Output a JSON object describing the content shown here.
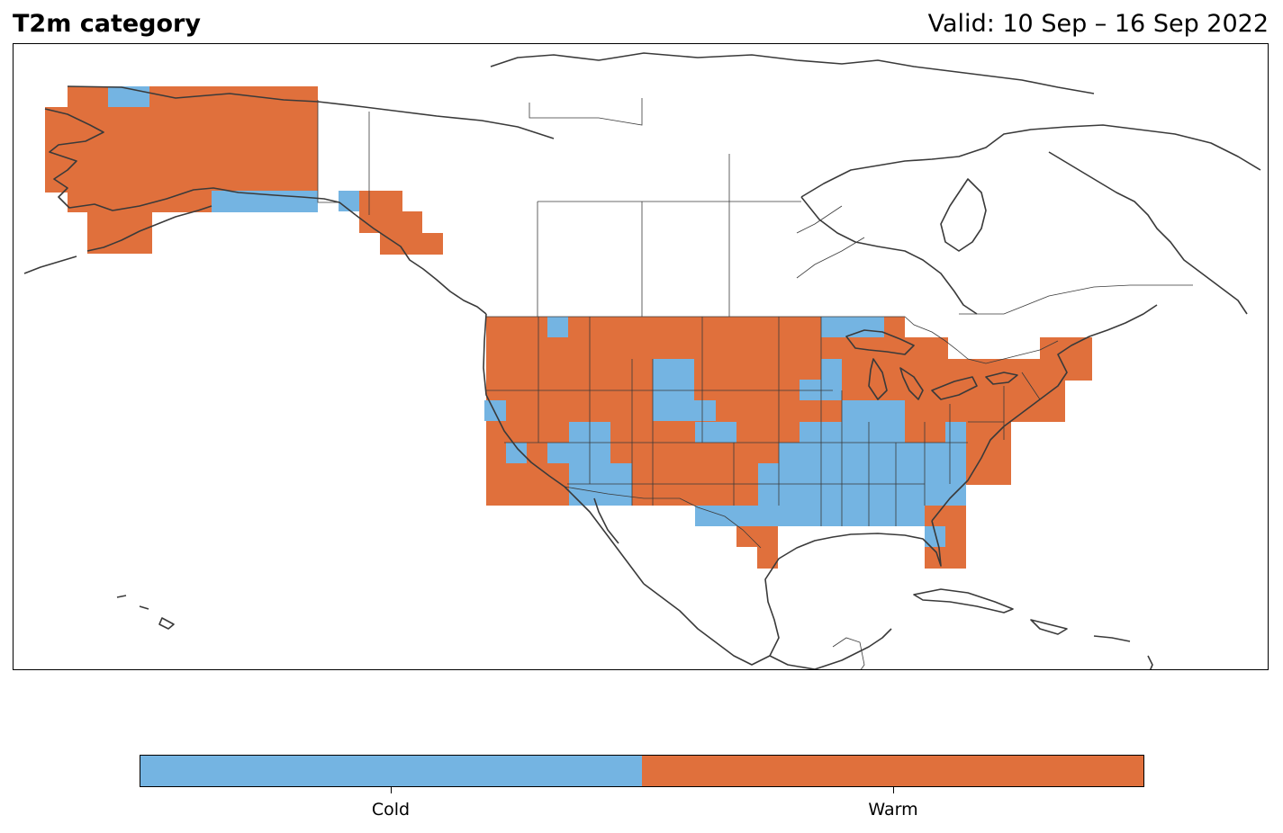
{
  "title": "T2m category",
  "valid_label": "Valid: 10 Sep – 16 Sep 2022",
  "legend": {
    "categories": [
      {
        "label": "Cold",
        "color": "#74b4e2"
      },
      {
        "label": "Warm",
        "color": "#e0703c"
      }
    ]
  },
  "colors": {
    "cold": "#74b4e2",
    "warm": "#e0703c",
    "coastline": "#3a3a3a",
    "border": "#3a3a3a"
  }
}
